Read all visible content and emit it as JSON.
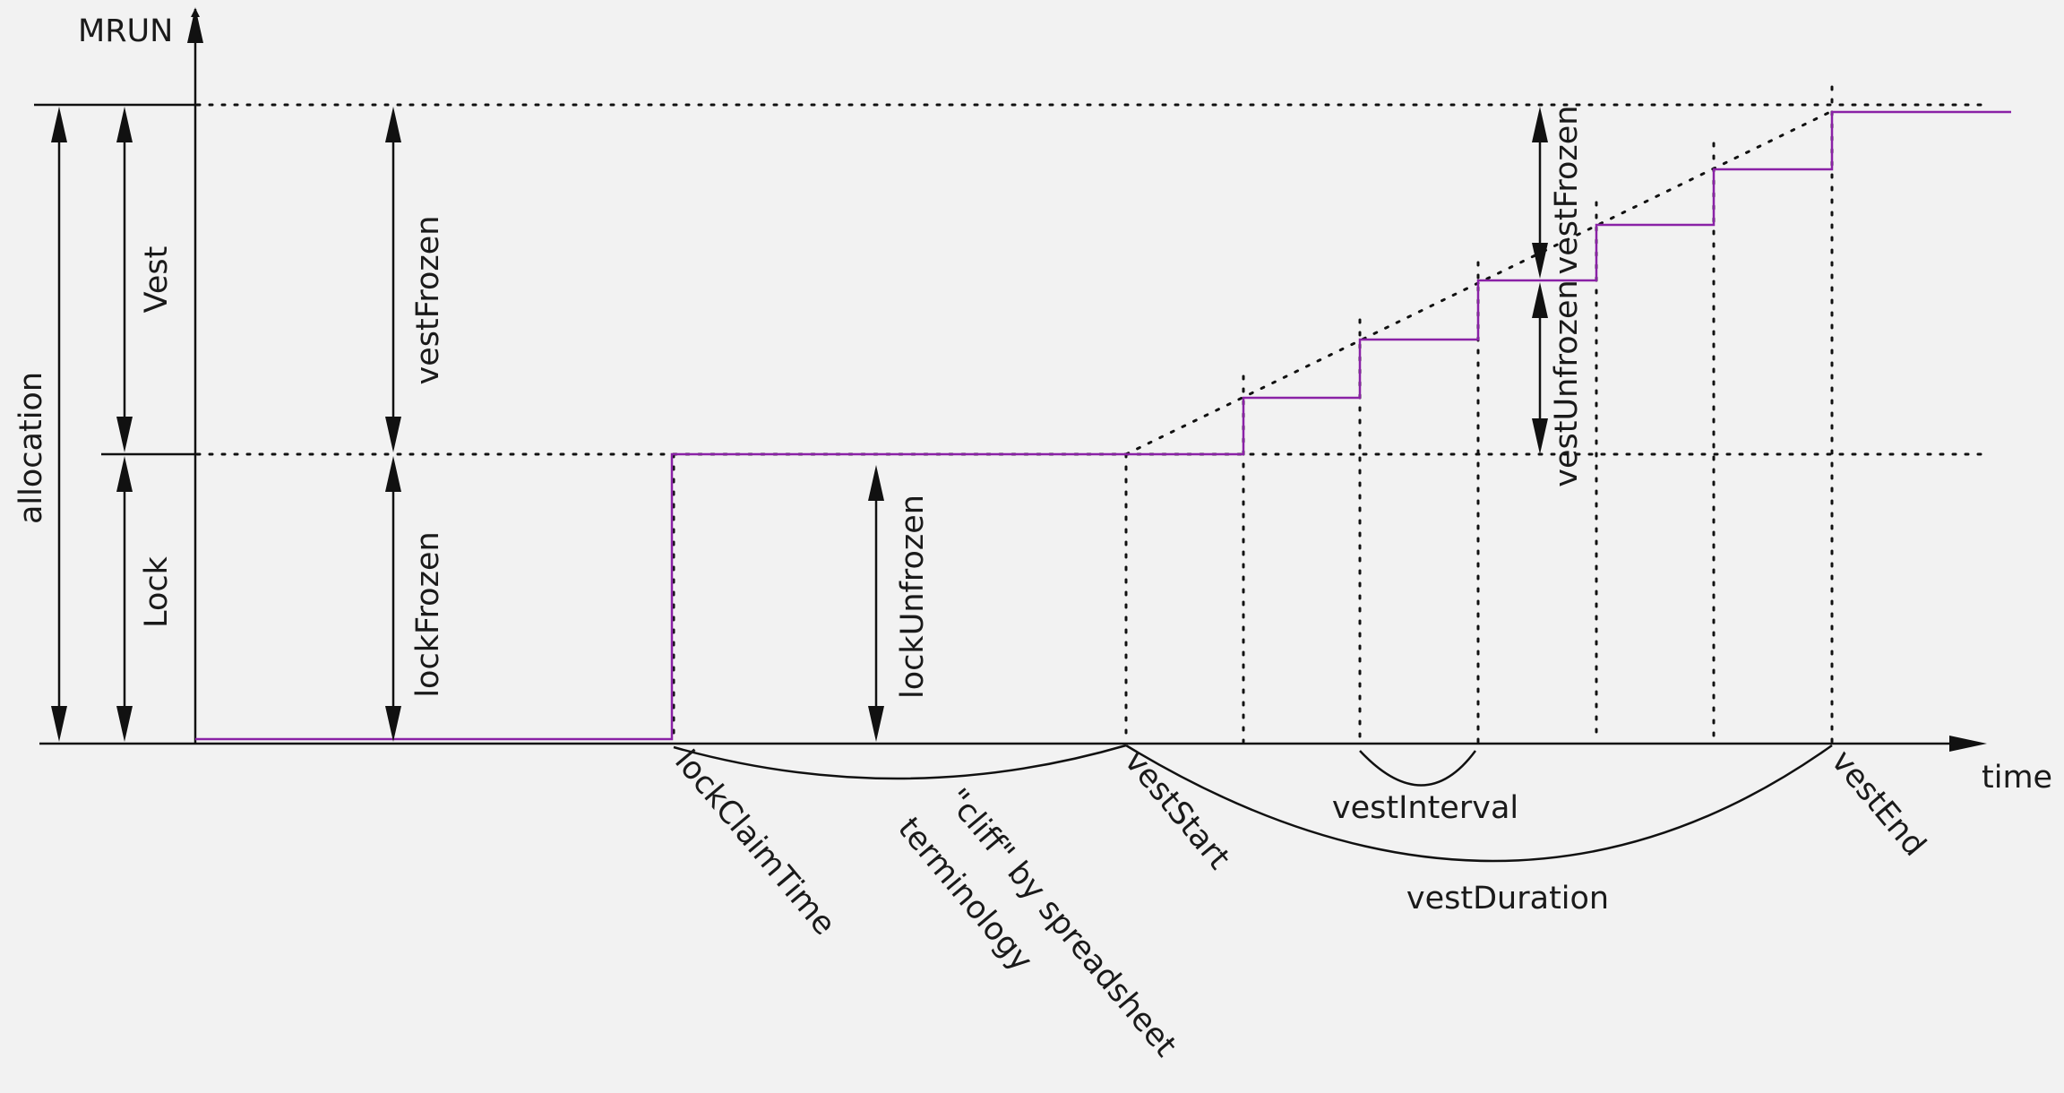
{
  "axes": {
    "y_label": "MRUN",
    "x_label": "time"
  },
  "levels": {
    "allocation": "allocation",
    "vest": "Vest",
    "lock": "Lock"
  },
  "dimensions": {
    "vest_frozen": "vestFrozen",
    "lock_frozen": "lockFrozen",
    "lock_unfrozen": "lockUnfrozen",
    "vest_frozen_step": "vestFrozen",
    "vest_unfrozen_step": "vestUnfrozen"
  },
  "time_markers": {
    "lock_claim_time": "lockClaimTime",
    "vest_start": "vestStart",
    "vest_end": "vestEnd"
  },
  "spans": {
    "cliff_note": "\"cliff\" by spreadsheet",
    "cliff_note_line2": "terminology",
    "vest_interval": "vestInterval",
    "vest_duration": "vestDuration"
  },
  "colors": {
    "unlocked_curve": "#8a22a6",
    "lines": "#111111",
    "background": "#f2f2f2"
  }
}
